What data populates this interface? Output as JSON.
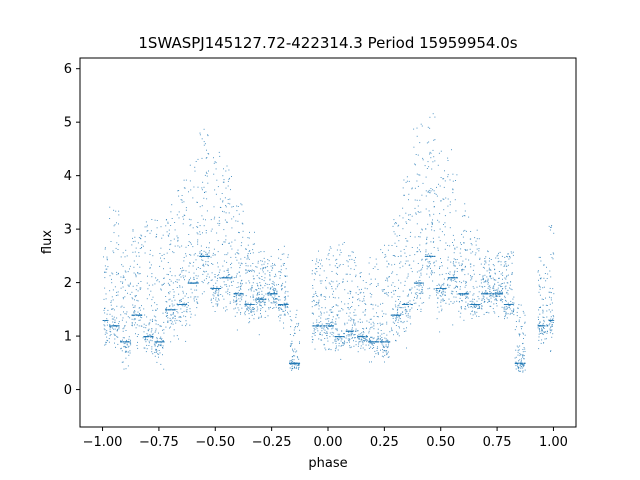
{
  "chart_data": {
    "type": "scatter",
    "title": "1SWASPJ145127.72-422314.3 Period 15959954.0s",
    "xlabel": "phase",
    "ylabel": "flux",
    "xlim": [
      -1.1,
      1.1
    ],
    "ylim": [
      -0.7,
      6.2
    ],
    "xticks": [
      -1.0,
      -0.75,
      -0.5,
      -0.25,
      0.0,
      0.25,
      0.5,
      0.75,
      1.0
    ],
    "xtick_labels": [
      "−1.00",
      "−0.75",
      "−0.50",
      "−0.25",
      "0.00",
      "0.25",
      "0.50",
      "0.75",
      "1.00"
    ],
    "yticks": [
      0,
      1,
      2,
      3,
      4,
      5,
      6
    ],
    "ytick_labels": [
      "0",
      "1",
      "2",
      "3",
      "4",
      "5",
      "6"
    ],
    "grid": false,
    "marker_color": "#1f77b4",
    "phase_folded": true,
    "envelope": [
      {
        "x": -1.0,
        "y_min": 0.1,
        "y_max": 3.0,
        "y_median": 1.3
      },
      {
        "x": -0.95,
        "y_min": 0.2,
        "y_max": 3.5,
        "y_median": 1.2
      },
      {
        "x": -0.9,
        "y_min": 0.1,
        "y_max": 2.7,
        "y_median": 0.9
      },
      {
        "x": -0.85,
        "y_min": 0.1,
        "y_max": 3.0,
        "y_median": 1.4
      },
      {
        "x": -0.8,
        "y_min": 0.1,
        "y_max": 3.3,
        "y_median": 1.0
      },
      {
        "x": -0.75,
        "y_min": 0.05,
        "y_max": 3.2,
        "y_median": 0.9
      },
      {
        "x": -0.7,
        "y_min": 0.2,
        "y_max": 3.5,
        "y_median": 1.5
      },
      {
        "x": -0.65,
        "y_min": 0.3,
        "y_max": 4.0,
        "y_median": 1.6
      },
      {
        "x": -0.6,
        "y_min": 0.5,
        "y_max": 4.5,
        "y_median": 2.0
      },
      {
        "x": -0.55,
        "y_min": 1.0,
        "y_max": 5.0,
        "y_median": 2.5
      },
      {
        "x": -0.5,
        "y_min": 0.8,
        "y_max": 4.5,
        "y_median": 1.9
      },
      {
        "x": -0.45,
        "y_min": 0.6,
        "y_max": 4.2,
        "y_median": 2.1
      },
      {
        "x": -0.4,
        "y_min": 0.8,
        "y_max": 3.5,
        "y_median": 1.8
      },
      {
        "x": -0.35,
        "y_min": 0.9,
        "y_max": 3.0,
        "y_median": 1.6
      },
      {
        "x": -0.3,
        "y_min": 0.8,
        "y_max": 2.6,
        "y_median": 1.7
      },
      {
        "x": -0.25,
        "y_min": 1.0,
        "y_max": 2.5,
        "y_median": 1.8
      },
      {
        "x": -0.2,
        "y_min": 0.9,
        "y_max": 2.7,
        "y_median": 1.6
      },
      {
        "x": -0.15,
        "y_min": 0.1,
        "y_max": 1.5,
        "y_median": 0.5
      },
      {
        "x": -0.05,
        "y_min": 0.3,
        "y_max": 2.6,
        "y_median": 1.2
      },
      {
        "x": 0.0,
        "y_min": 0.2,
        "y_max": 2.7,
        "y_median": 1.2
      },
      {
        "x": 0.05,
        "y_min": 0.2,
        "y_max": 2.8,
        "y_median": 1.0
      },
      {
        "x": 0.1,
        "y_min": 0.3,
        "y_max": 2.6,
        "y_median": 1.1
      },
      {
        "x": 0.15,
        "y_min": 0.4,
        "y_max": 2.2,
        "y_median": 1.0
      },
      {
        "x": 0.2,
        "y_min": 0.1,
        "y_max": 2.5,
        "y_median": 0.9
      },
      {
        "x": 0.25,
        "y_min": 0.05,
        "y_max": 2.8,
        "y_median": 0.9
      },
      {
        "x": 0.3,
        "y_min": 0.2,
        "y_max": 3.3,
        "y_median": 1.4
      },
      {
        "x": 0.35,
        "y_min": 0.4,
        "y_max": 4.0,
        "y_median": 1.6
      },
      {
        "x": 0.4,
        "y_min": 0.6,
        "y_max": 5.0,
        "y_median": 2.0
      },
      {
        "x": 0.45,
        "y_min": 0.9,
        "y_max": 5.2,
        "y_median": 2.5
      },
      {
        "x": 0.5,
        "y_min": 0.8,
        "y_max": 4.5,
        "y_median": 1.9
      },
      {
        "x": 0.55,
        "y_min": 0.7,
        "y_max": 4.5,
        "y_median": 2.1
      },
      {
        "x": 0.6,
        "y_min": 0.8,
        "y_max": 3.5,
        "y_median": 1.8
      },
      {
        "x": 0.65,
        "y_min": 0.8,
        "y_max": 3.0,
        "y_median": 1.6
      },
      {
        "x": 0.7,
        "y_min": 1.0,
        "y_max": 2.6,
        "y_median": 1.8
      },
      {
        "x": 0.75,
        "y_min": 1.0,
        "y_max": 2.6,
        "y_median": 1.8
      },
      {
        "x": 0.8,
        "y_min": 0.8,
        "y_max": 2.6,
        "y_median": 1.6
      },
      {
        "x": 0.85,
        "y_min": 0.1,
        "y_max": 1.6,
        "y_median": 0.5
      },
      {
        "x": 0.95,
        "y_min": 0.3,
        "y_max": 2.5,
        "y_median": 1.2
      },
      {
        "x": 1.0,
        "y_min": 0.2,
        "y_max": 3.2,
        "y_median": 1.3
      }
    ]
  }
}
